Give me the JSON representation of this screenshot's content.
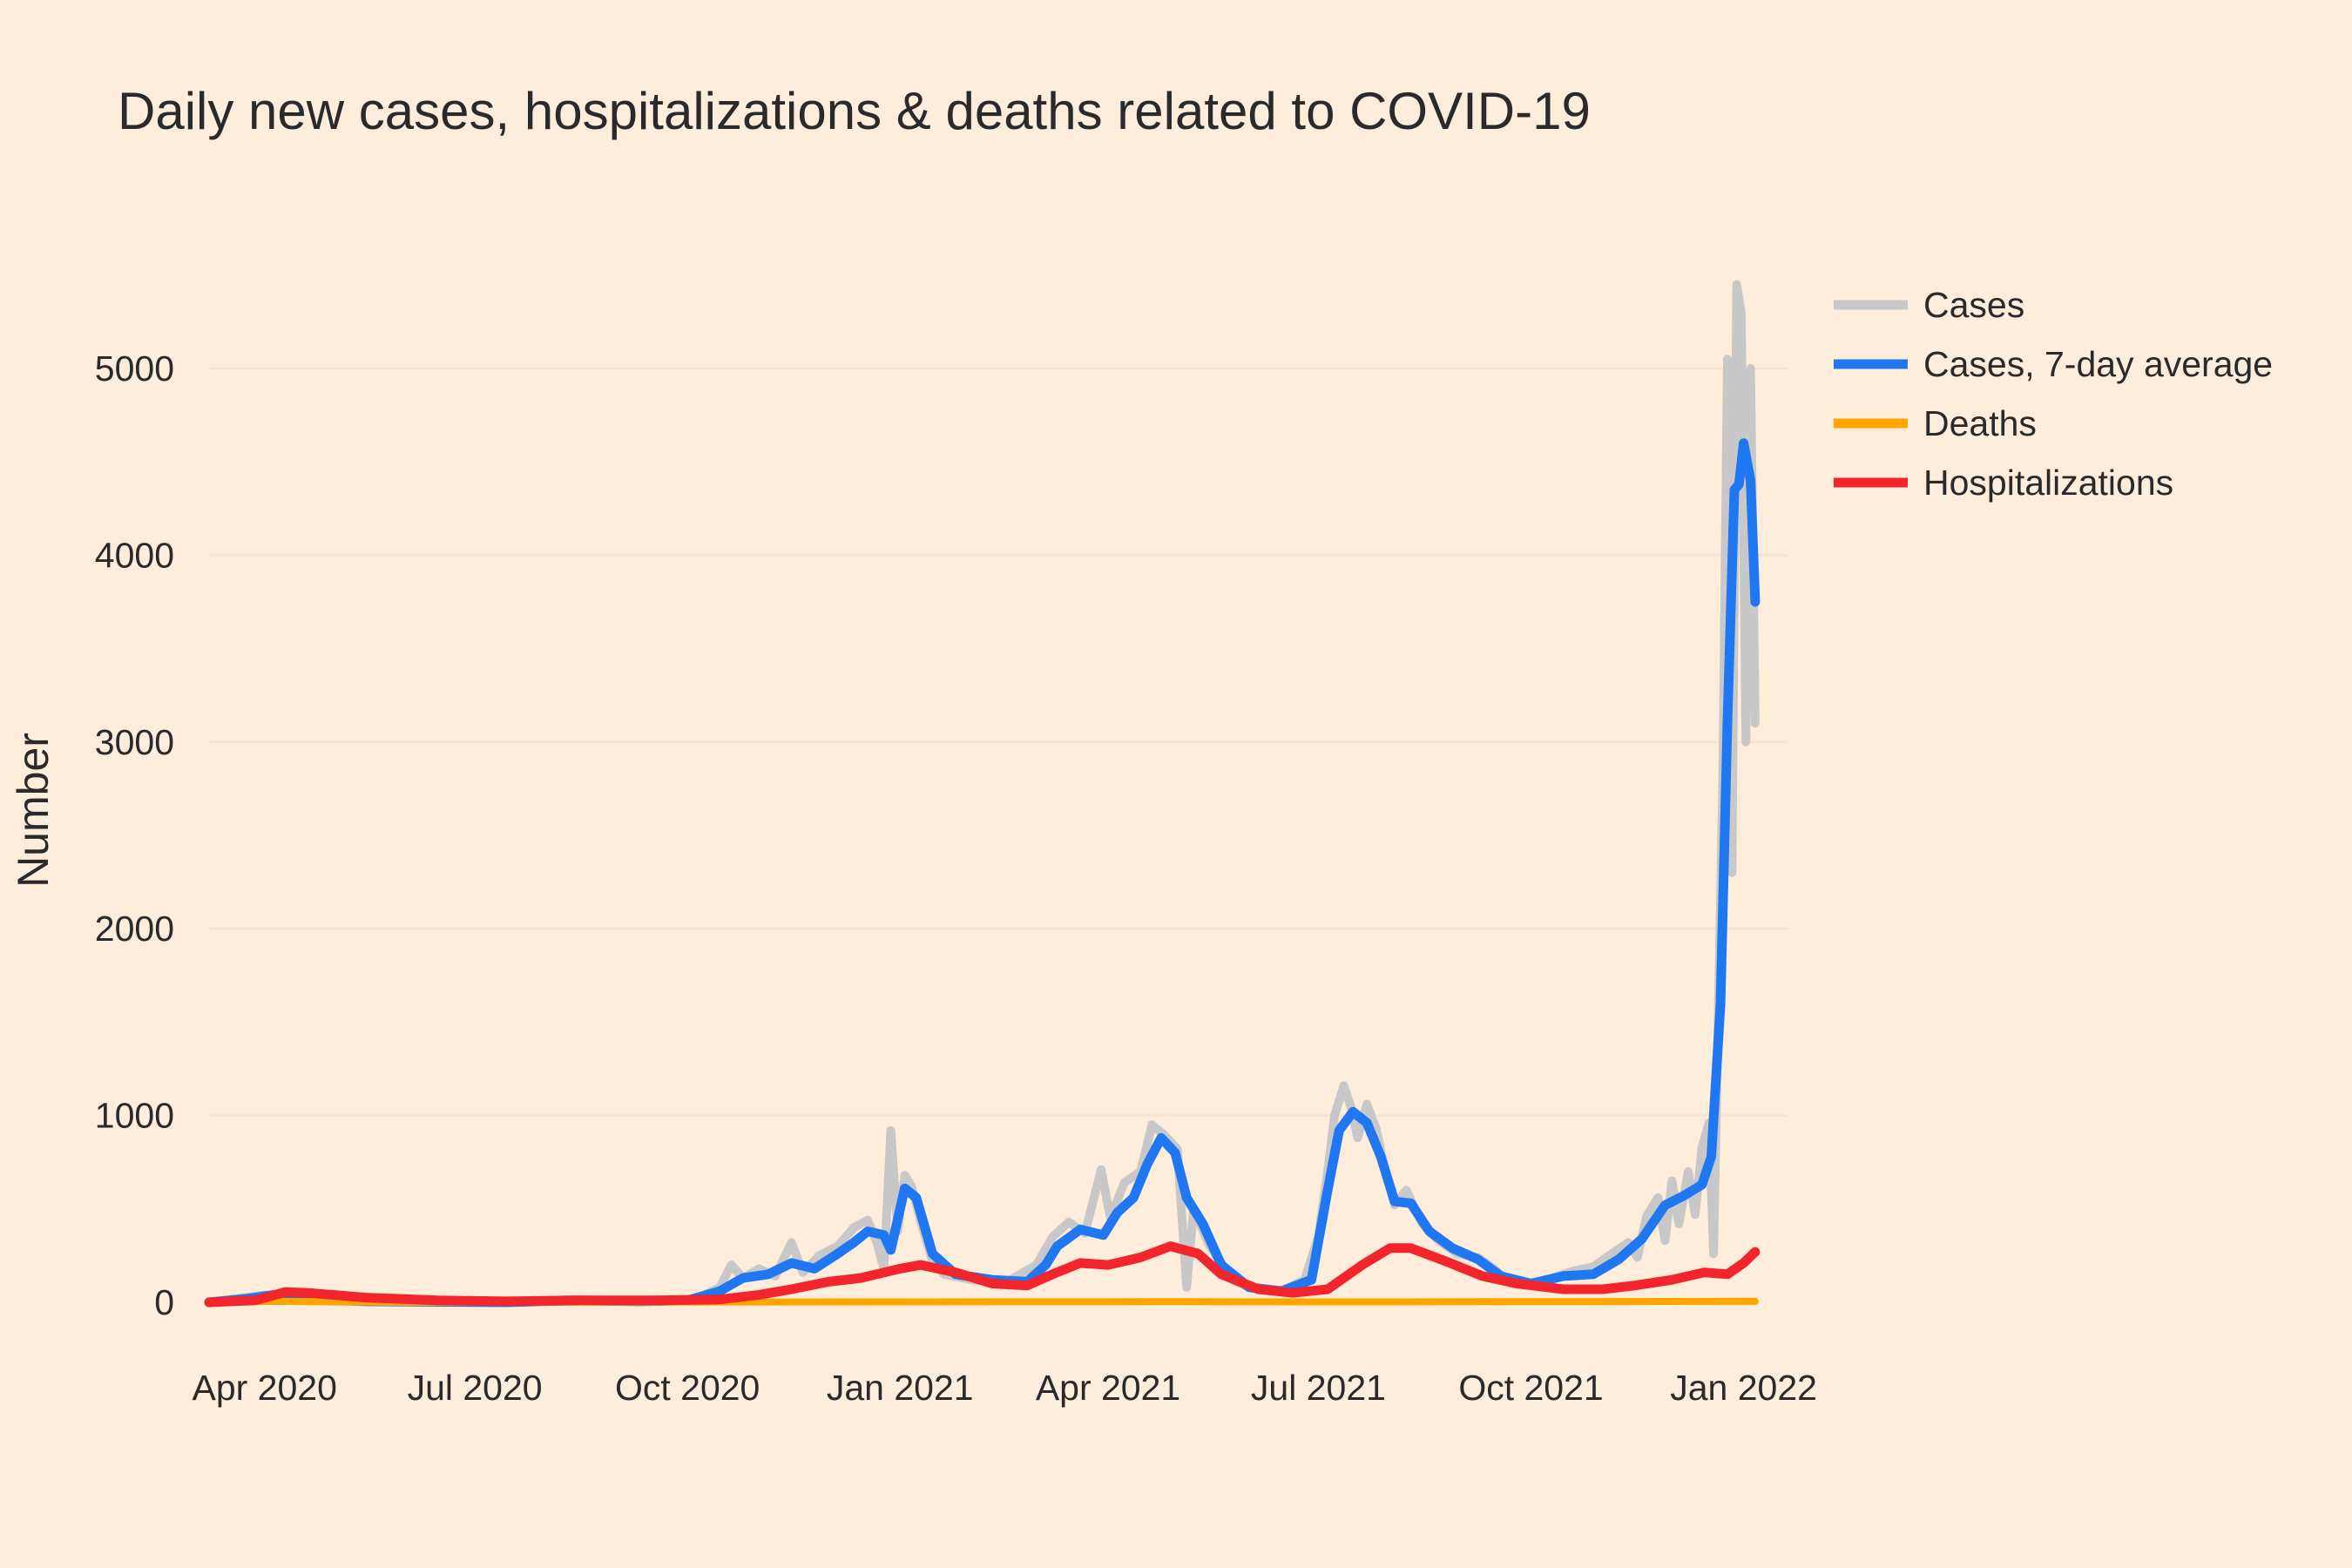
{
  "chart_data": {
    "type": "line",
    "title": "Daily new cases, hospitalizations & deaths related to COVID-19",
    "xlabel": "",
    "ylabel": "Number",
    "x_range": [
      "2020-03-08",
      "2022-01-20"
    ],
    "ylim": [
      -350,
      5900
    ],
    "y_ticks": [
      0,
      1000,
      2000,
      3000,
      4000,
      5000
    ],
    "y_tick_labels": [
      "0",
      "1000",
      "2000",
      "3000",
      "4000",
      "5000"
    ],
    "x_ticks": [
      "2020-04-01",
      "2020-07-01",
      "2020-10-01",
      "2021-01-01",
      "2021-04-01",
      "2021-07-01",
      "2021-10-01",
      "2022-01-01"
    ],
    "x_tick_labels": [
      "Apr 2020",
      "Jul 2020",
      "Oct 2020",
      "Jan 2021",
      "Apr 2021",
      "Jul 2021",
      "Oct 2021",
      "Jan 2022"
    ],
    "grid": true,
    "legend_position": "top-right",
    "series": [
      {
        "name": "Cases",
        "color": "#C8C8C8",
        "points": [
          [
            "2020-03-08",
            0
          ],
          [
            "2020-03-20",
            20
          ],
          [
            "2020-04-01",
            40
          ],
          [
            "2020-04-10",
            20
          ],
          [
            "2020-05-01",
            5
          ],
          [
            "2020-07-01",
            0
          ],
          [
            "2020-08-15",
            15
          ],
          [
            "2020-09-15",
            5
          ],
          [
            "2020-10-05",
            20
          ],
          [
            "2020-10-15",
            80
          ],
          [
            "2020-10-20",
            200
          ],
          [
            "2020-10-25",
            130
          ],
          [
            "2020-11-01",
            180
          ],
          [
            "2020-11-08",
            140
          ],
          [
            "2020-11-15",
            320
          ],
          [
            "2020-11-20",
            160
          ],
          [
            "2020-11-27",
            250
          ],
          [
            "2020-12-05",
            300
          ],
          [
            "2020-12-12",
            400
          ],
          [
            "2020-12-18",
            440
          ],
          [
            "2020-12-22",
            320
          ],
          [
            "2020-12-25",
            180
          ],
          [
            "2020-12-28",
            920
          ],
          [
            "2020-12-31",
            380
          ],
          [
            "2021-01-03",
            680
          ],
          [
            "2021-01-06",
            620
          ],
          [
            "2021-01-10",
            430
          ],
          [
            "2021-01-15",
            220
          ],
          [
            "2021-01-20",
            150
          ],
          [
            "2021-02-01",
            120
          ],
          [
            "2021-02-15",
            100
          ],
          [
            "2021-03-01",
            200
          ],
          [
            "2021-03-08",
            350
          ],
          [
            "2021-03-15",
            430
          ],
          [
            "2021-03-22",
            370
          ],
          [
            "2021-03-29",
            710
          ],
          [
            "2021-04-02",
            450
          ],
          [
            "2021-04-08",
            640
          ],
          [
            "2021-04-15",
            700
          ],
          [
            "2021-04-20",
            950
          ],
          [
            "2021-04-25",
            900
          ],
          [
            "2021-05-01",
            820
          ],
          [
            "2021-05-05",
            80
          ],
          [
            "2021-05-08",
            500
          ],
          [
            "2021-05-15",
            300
          ],
          [
            "2021-05-25",
            120
          ],
          [
            "2021-06-01",
            80
          ],
          [
            "2021-06-15",
            60
          ],
          [
            "2021-06-25",
            120
          ],
          [
            "2021-07-01",
            350
          ],
          [
            "2021-07-05",
            700
          ],
          [
            "2021-07-08",
            1000
          ],
          [
            "2021-07-12",
            1160
          ],
          [
            "2021-07-15",
            1050
          ],
          [
            "2021-07-18",
            880
          ],
          [
            "2021-07-22",
            1060
          ],
          [
            "2021-07-26",
            930
          ],
          [
            "2021-07-30",
            700
          ],
          [
            "2021-08-03",
            520
          ],
          [
            "2021-08-08",
            600
          ],
          [
            "2021-08-15",
            420
          ],
          [
            "2021-08-22",
            330
          ],
          [
            "2021-08-30",
            260
          ],
          [
            "2021-09-08",
            240
          ],
          [
            "2021-09-15",
            180
          ],
          [
            "2021-09-22",
            100
          ],
          [
            "2021-10-01",
            90
          ],
          [
            "2021-10-10",
            130
          ],
          [
            "2021-10-20",
            170
          ],
          [
            "2021-10-28",
            190
          ],
          [
            "2021-11-05",
            260
          ],
          [
            "2021-11-12",
            320
          ],
          [
            "2021-11-16",
            240
          ],
          [
            "2021-11-20",
            460
          ],
          [
            "2021-11-25",
            560
          ],
          [
            "2021-11-28",
            330
          ],
          [
            "2021-12-01",
            650
          ],
          [
            "2021-12-04",
            420
          ],
          [
            "2021-12-08",
            700
          ],
          [
            "2021-12-11",
            470
          ],
          [
            "2021-12-14",
            830
          ],
          [
            "2021-12-17",
            960
          ],
          [
            "2021-12-19",
            260
          ],
          [
            "2021-12-21",
            1500
          ],
          [
            "2021-12-23",
            2800
          ],
          [
            "2021-12-25",
            5050
          ],
          [
            "2021-12-27",
            2300
          ],
          [
            "2021-12-29",
            5450
          ],
          [
            "2021-12-31",
            5300
          ],
          [
            "2022-01-02",
            3000
          ],
          [
            "2022-01-04",
            5000
          ],
          [
            "2022-01-06",
            3100
          ]
        ]
      },
      {
        "name": "Cases, 7-day average",
        "color": "#1F78F2",
        "points": [
          [
            "2020-03-08",
            0
          ],
          [
            "2020-03-25",
            20
          ],
          [
            "2020-04-05",
            40
          ],
          [
            "2020-04-20",
            20
          ],
          [
            "2020-05-15",
            5
          ],
          [
            "2020-07-15",
            0
          ],
          [
            "2020-08-10",
            10
          ],
          [
            "2020-09-10",
            5
          ],
          [
            "2020-10-01",
            10
          ],
          [
            "2020-10-15",
            60
          ],
          [
            "2020-10-25",
            130
          ],
          [
            "2020-11-05",
            150
          ],
          [
            "2020-11-15",
            210
          ],
          [
            "2020-11-25",
            180
          ],
          [
            "2020-12-05",
            260
          ],
          [
            "2020-12-12",
            320
          ],
          [
            "2020-12-18",
            380
          ],
          [
            "2020-12-25",
            360
          ],
          [
            "2020-12-28",
            280
          ],
          [
            "2021-01-03",
            610
          ],
          [
            "2021-01-08",
            560
          ],
          [
            "2021-01-15",
            260
          ],
          [
            "2021-01-25",
            150
          ],
          [
            "2021-02-10",
            120
          ],
          [
            "2021-02-25",
            110
          ],
          [
            "2021-03-05",
            200
          ],
          [
            "2021-03-10",
            300
          ],
          [
            "2021-03-20",
            390
          ],
          [
            "2021-03-30",
            360
          ],
          [
            "2021-04-05",
            480
          ],
          [
            "2021-04-12",
            560
          ],
          [
            "2021-04-18",
            740
          ],
          [
            "2021-04-24",
            880
          ],
          [
            "2021-04-30",
            800
          ],
          [
            "2021-05-05",
            560
          ],
          [
            "2021-05-12",
            420
          ],
          [
            "2021-05-20",
            200
          ],
          [
            "2021-06-01",
            80
          ],
          [
            "2021-06-15",
            60
          ],
          [
            "2021-06-28",
            120
          ],
          [
            "2021-07-05",
            600
          ],
          [
            "2021-07-10",
            920
          ],
          [
            "2021-07-16",
            1020
          ],
          [
            "2021-07-22",
            960
          ],
          [
            "2021-07-28",
            780
          ],
          [
            "2021-08-03",
            540
          ],
          [
            "2021-08-10",
            530
          ],
          [
            "2021-08-18",
            380
          ],
          [
            "2021-08-28",
            290
          ],
          [
            "2021-09-08",
            230
          ],
          [
            "2021-09-18",
            140
          ],
          [
            "2021-10-01",
            100
          ],
          [
            "2021-10-15",
            140
          ],
          [
            "2021-10-28",
            150
          ],
          [
            "2021-11-08",
            230
          ],
          [
            "2021-11-18",
            340
          ],
          [
            "2021-11-28",
            520
          ],
          [
            "2021-12-06",
            570
          ],
          [
            "2021-12-14",
            630
          ],
          [
            "2021-12-18",
            780
          ],
          [
            "2021-12-22",
            1600
          ],
          [
            "2021-12-25",
            3100
          ],
          [
            "2021-12-28",
            4350
          ],
          [
            "2021-12-30",
            4380
          ],
          [
            "2022-01-01",
            4600
          ],
          [
            "2022-01-04",
            4400
          ],
          [
            "2022-01-06",
            3750
          ]
        ]
      },
      {
        "name": "Deaths",
        "color": "#FFA500",
        "points": [
          [
            "2020-03-08",
            0
          ],
          [
            "2020-04-01",
            5
          ],
          [
            "2020-06-01",
            0
          ],
          [
            "2021-01-01",
            2
          ],
          [
            "2021-05-01",
            3
          ],
          [
            "2021-08-01",
            2
          ],
          [
            "2022-01-06",
            5
          ]
        ]
      },
      {
        "name": "Hospitalizations",
        "color": "#F2242C",
        "points": [
          [
            "2020-03-08",
            0
          ],
          [
            "2020-03-28",
            10
          ],
          [
            "2020-04-10",
            55
          ],
          [
            "2020-04-20",
            50
          ],
          [
            "2020-05-15",
            25
          ],
          [
            "2020-06-15",
            10
          ],
          [
            "2020-07-15",
            5
          ],
          [
            "2020-08-15",
            10
          ],
          [
            "2020-09-15",
            10
          ],
          [
            "2020-10-15",
            15
          ],
          [
            "2020-11-01",
            40
          ],
          [
            "2020-11-15",
            70
          ],
          [
            "2020-12-01",
            110
          ],
          [
            "2020-12-15",
            130
          ],
          [
            "2021-01-01",
            180
          ],
          [
            "2021-01-10",
            200
          ],
          [
            "2021-01-25",
            160
          ],
          [
            "2021-02-10",
            100
          ],
          [
            "2021-02-25",
            90
          ],
          [
            "2021-03-08",
            150
          ],
          [
            "2021-03-20",
            210
          ],
          [
            "2021-04-01",
            200
          ],
          [
            "2021-04-15",
            240
          ],
          [
            "2021-04-28",
            300
          ],
          [
            "2021-05-10",
            260
          ],
          [
            "2021-05-20",
            150
          ],
          [
            "2021-06-05",
            70
          ],
          [
            "2021-06-20",
            50
          ],
          [
            "2021-07-05",
            70
          ],
          [
            "2021-07-20",
            200
          ],
          [
            "2021-08-01",
            290
          ],
          [
            "2021-08-10",
            290
          ],
          [
            "2021-08-25",
            220
          ],
          [
            "2021-09-10",
            140
          ],
          [
            "2021-09-25",
            100
          ],
          [
            "2021-10-15",
            70
          ],
          [
            "2021-11-01",
            70
          ],
          [
            "2021-11-15",
            90
          ],
          [
            "2021-12-01",
            120
          ],
          [
            "2021-12-15",
            160
          ],
          [
            "2021-12-25",
            150
          ],
          [
            "2022-01-01",
            210
          ],
          [
            "2022-01-06",
            270
          ]
        ]
      }
    ]
  }
}
